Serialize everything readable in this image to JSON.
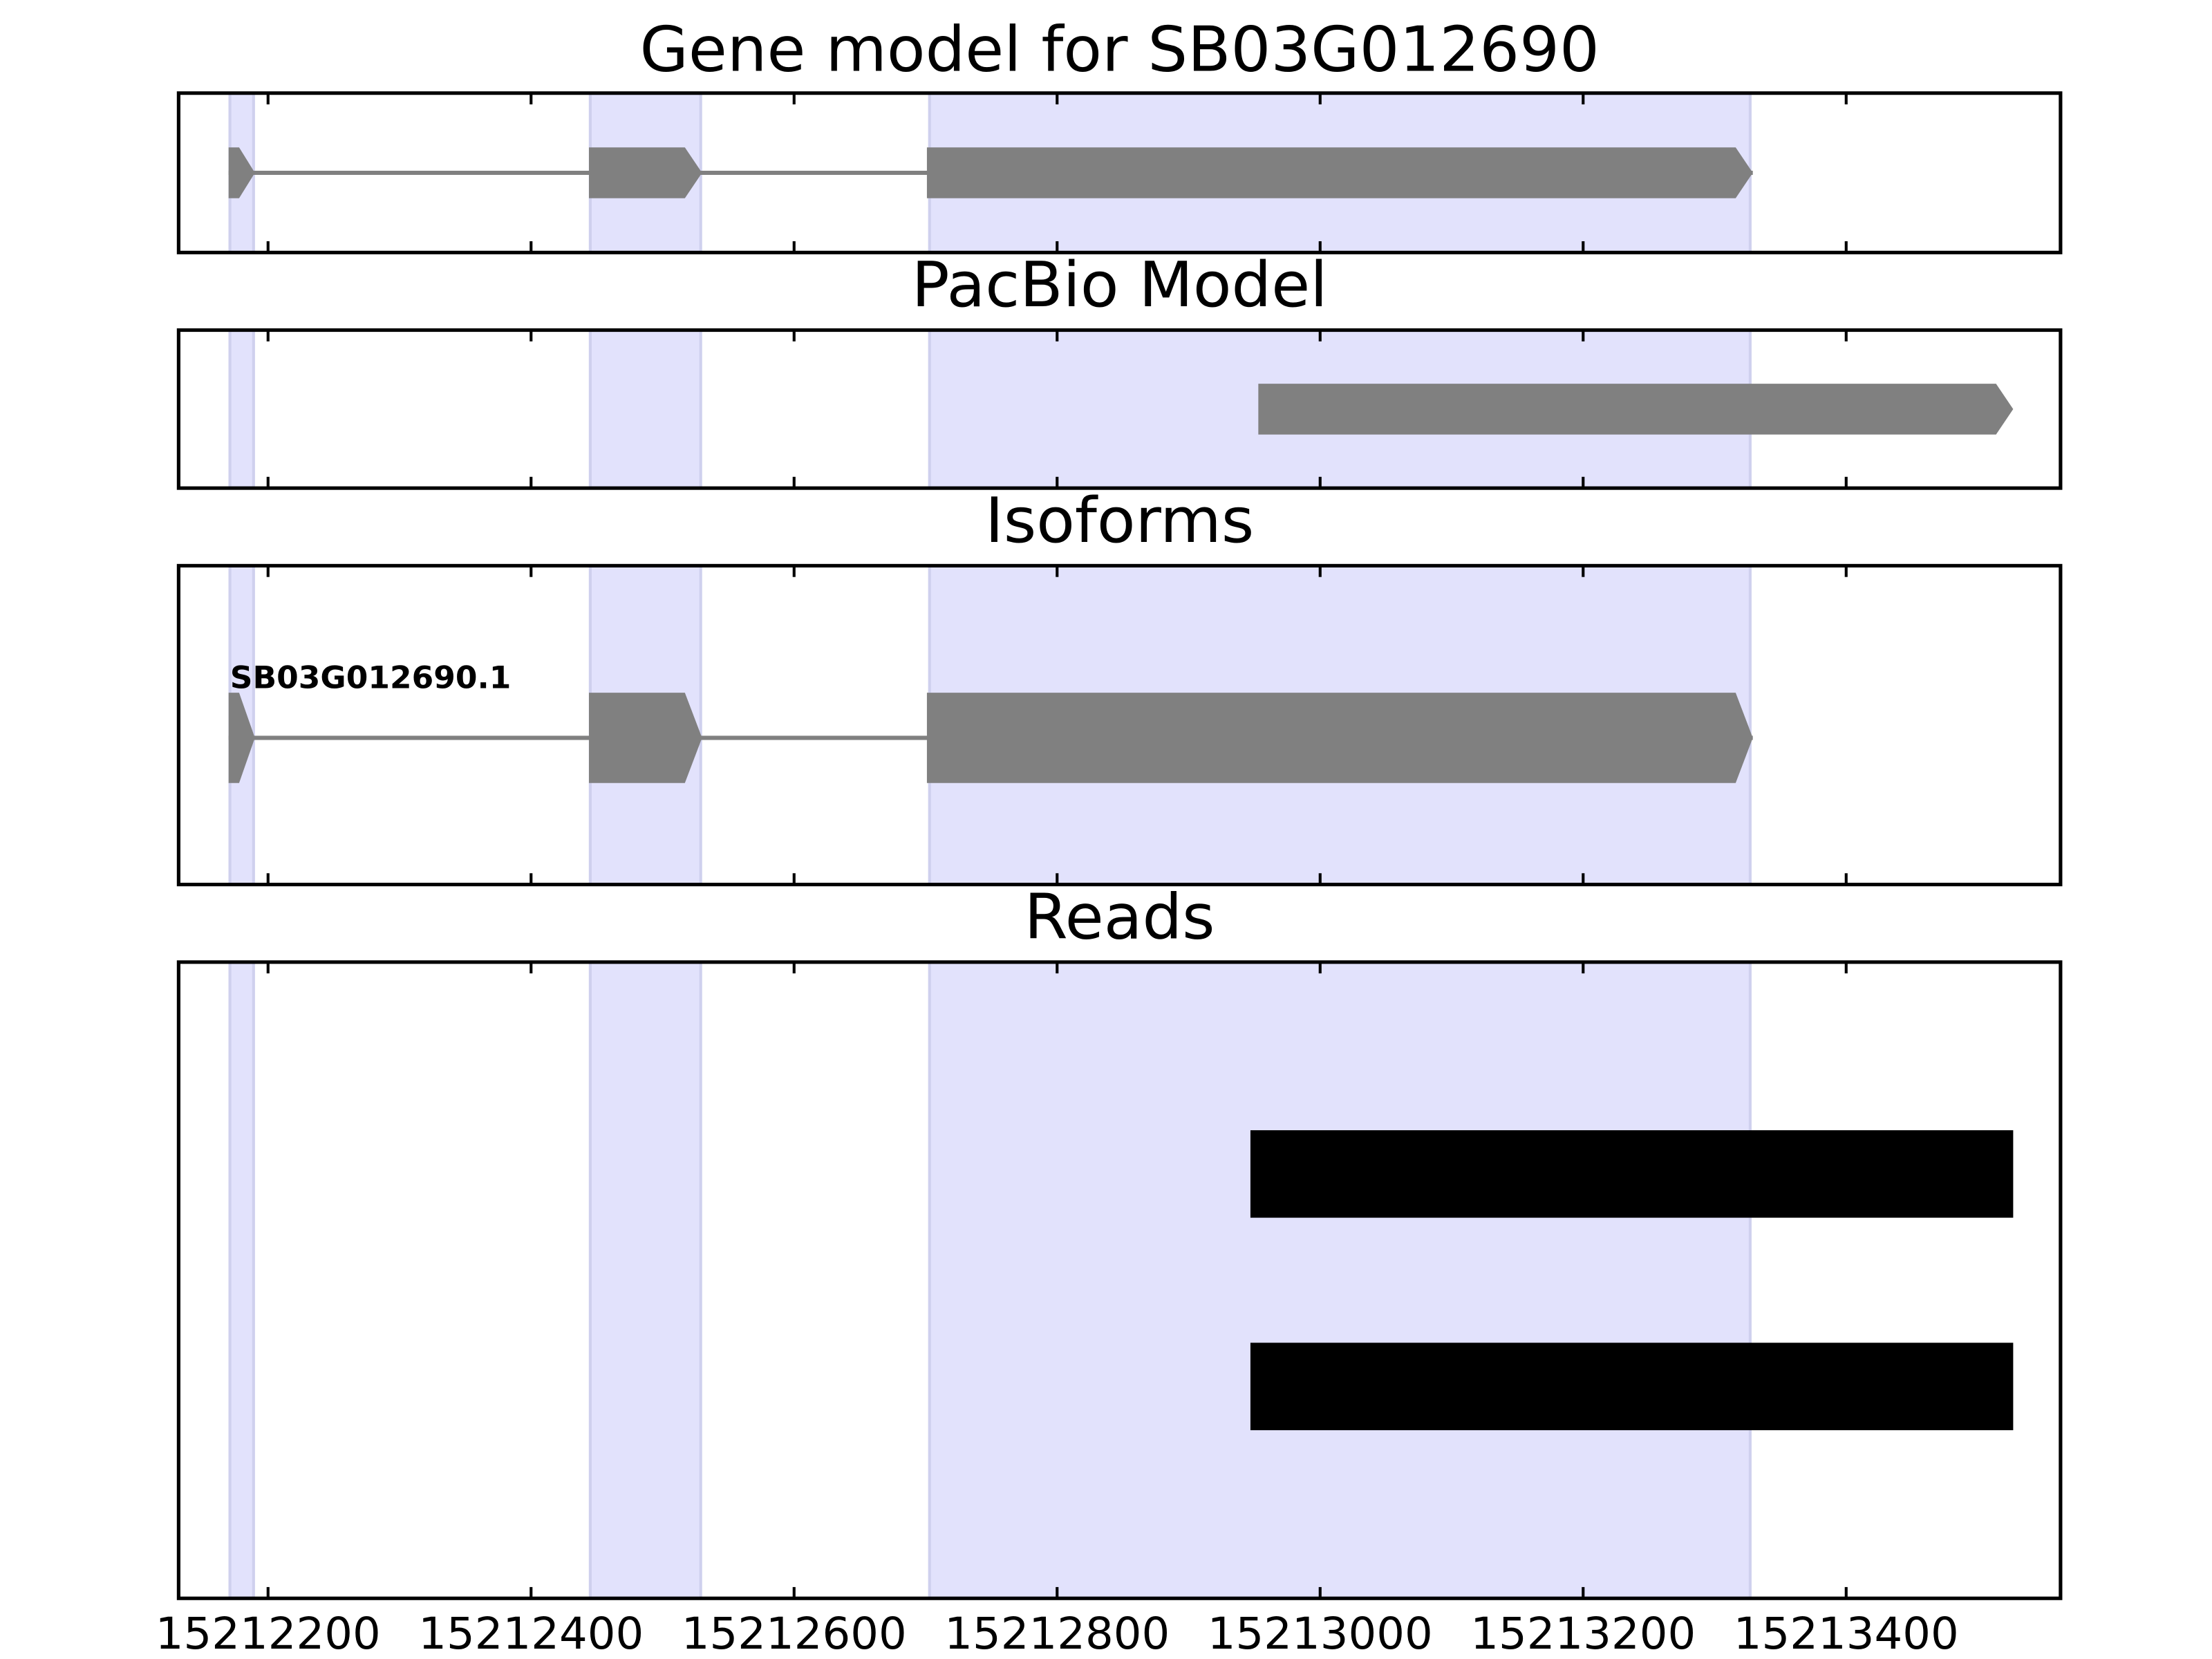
{
  "chart_data": [
    {
      "type": "gene",
      "title": "Gene model for SB03G012690",
      "color": "#808080",
      "highlight_color": "#e2e2fc",
      "xlim": [
        15212132,
        15213563
      ],
      "xticks": [
        15212200,
        15212400,
        15212600,
        15212800,
        15213000,
        15213200,
        15213400
      ],
      "highlights": [
        [
          15212171,
          15212189
        ],
        [
          15212445,
          15212529
        ],
        [
          15212703,
          15213327
        ]
      ],
      "tracks": [
        {
          "exons": [
            [
              15212170,
              15212190
            ],
            [
              15212444,
              15212530
            ],
            [
              15212701,
              15213329
            ]
          ]
        }
      ]
    },
    {
      "type": "gene",
      "title": "PacBio Model",
      "color": "#808080",
      "highlight_color": "#e2e2fc",
      "xlim": [
        15212132,
        15213563
      ],
      "xticks": [
        15212200,
        15212400,
        15212600,
        15212800,
        15213000,
        15213200,
        15213400
      ],
      "highlights": [
        [
          15212171,
          15212189
        ],
        [
          15212445,
          15212529
        ],
        [
          15212703,
          15213327
        ]
      ],
      "tracks": [
        {
          "exons": [
            [
              15212953,
              15213527
            ]
          ]
        }
      ]
    },
    {
      "type": "gene",
      "title": "Isoforms",
      "color": "#808080",
      "highlight_color": "#e2e2fc",
      "xlim": [
        15212132,
        15213563
      ],
      "xticks": [
        15212200,
        15212400,
        15212600,
        15212800,
        15213000,
        15213200,
        15213400
      ],
      "highlights": [
        [
          15212171,
          15212189
        ],
        [
          15212445,
          15212529
        ],
        [
          15212703,
          15213327
        ]
      ],
      "tracks": [
        {
          "name": "SB03G012690.1",
          "exons": [
            [
              15212170,
              15212190
            ],
            [
              15212444,
              15212530
            ],
            [
              15212701,
              15213329
            ]
          ]
        }
      ]
    },
    {
      "type": "reads",
      "title": "Reads",
      "color": "#000000",
      "highlight_color": "#e2e2fc",
      "xlim": [
        15212132,
        15213563
      ],
      "xticks": [
        15212200,
        15212400,
        15212600,
        15212800,
        15213000,
        15213200,
        15213400
      ],
      "highlights": [
        [
          15212171,
          15212189
        ],
        [
          15212445,
          15212529
        ],
        [
          15212703,
          15213327
        ]
      ],
      "tracks": [
        {
          "exons": [
            [
              15212947,
              15213527
            ]
          ]
        },
        {
          "exons": [
            [
              15212947,
              15213527
            ]
          ]
        }
      ]
    }
  ]
}
